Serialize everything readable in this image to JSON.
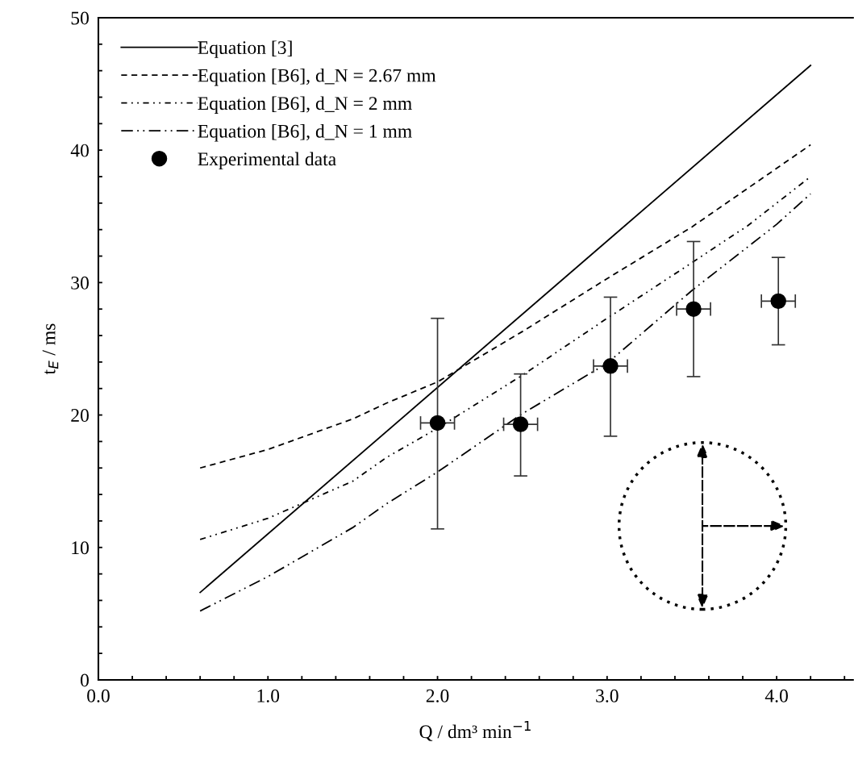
{
  "chart_data": {
    "type": "line",
    "xlabel": "Q / dm³ min$^{−1}$",
    "ylabel": "t$_{E}$ / ms",
    "xlim": [
      0,
      4.45
    ],
    "ylim": [
      0,
      50
    ],
    "xticks": [
      {
        "value": 0,
        "label": "0.0"
      },
      {
        "value": 0.2,
        "label": null
      },
      {
        "value": 0.4,
        "label": null
      },
      {
        "value": 0.6,
        "label": null
      },
      {
        "value": 0.8,
        "label": null
      },
      {
        "value": 1,
        "label": "1.0"
      },
      {
        "value": 1.2,
        "label": null
      },
      {
        "value": 1.4,
        "label": null
      },
      {
        "value": 1.6,
        "label": null
      },
      {
        "value": 1.8,
        "label": null
      },
      {
        "value": 2,
        "label": "2.0"
      },
      {
        "value": 2.2,
        "label": null
      },
      {
        "value": 2.4,
        "label": null
      },
      {
        "value": 2.6,
        "label": null
      },
      {
        "value": 2.8,
        "label": null
      },
      {
        "value": 3,
        "label": "3.0"
      },
      {
        "value": 3.2,
        "label": null
      },
      {
        "value": 3.4,
        "label": null
      },
      {
        "value": 3.6,
        "label": null
      },
      {
        "value": 3.8,
        "label": null
      },
      {
        "value": 4,
        "label": "4.0"
      },
      {
        "value": 4.2,
        "label": null
      },
      {
        "value": 4.4,
        "label": null
      }
    ],
    "yticks": [
      0,
      {
        "value": 2,
        "label": null
      },
      {
        "value": 4,
        "label": null
      },
      {
        "value": 6,
        "label": null
      },
      {
        "value": 8,
        "label": null
      },
      10,
      {
        "value": 12,
        "label": null
      },
      {
        "value": 14,
        "label": null
      },
      {
        "value": 16,
        "label": null
      },
      {
        "value": 18,
        "label": null
      },
      20,
      {
        "value": 22,
        "label": null
      },
      {
        "value": 24,
        "label": null
      },
      {
        "value": 26,
        "label": null
      },
      {
        "value": 28,
        "label": null
      },
      30,
      {
        "value": 32,
        "label": null
      },
      {
        "value": 34,
        "label": null
      },
      {
        "value": 36,
        "label": null
      },
      {
        "value": 38,
        "label": null
      },
      40,
      {
        "value": 42,
        "label": null
      },
      {
        "value": 44,
        "label": null
      },
      {
        "value": 46,
        "label": null
      },
      {
        "value": 48,
        "label": null
      },
      50
    ],
    "grid": false,
    "legend": "top left",
    "series": [
      {
        "name": "Equation [3]",
        "color": "#000000",
        "line_style": "solid",
        "x": [
          0.6,
          4.2
        ],
        "values": [
          6.6,
          46.4
        ]
      },
      {
        "name": "Equation [B6], d_N = 2.67 mm",
        "color": "#000000",
        "line_style": "dashed",
        "x": [
          0.6,
          1.0,
          1.5,
          1.7,
          2.0,
          2.5,
          3.0,
          3.5,
          4.2
        ],
        "values": [
          16.0,
          17.4,
          19.7,
          20.9,
          22.5,
          26.3,
          30.3,
          34.2,
          40.4
        ]
      },
      {
        "name": "Equation [B6], d_N = 2 mm",
        "color": "#000000",
        "line_style": "dashdotdot",
        "x": [
          0.6,
          1.0,
          1.5,
          1.7,
          2.0,
          2.5,
          3.0,
          3.5,
          3.83,
          4.2
        ],
        "values": [
          10.6,
          12.2,
          15.0,
          16.8,
          19.0,
          23.0,
          27.3,
          31.5,
          34.3,
          38.0
        ]
      },
      {
        "name": "Equation [B6], d_N = 1 mm",
        "color": "#000000",
        "line_style": "dashdot",
        "x": [
          0.6,
          1.0,
          1.5,
          1.7,
          2.0,
          2.5,
          3.0,
          3.5,
          4.0,
          4.2
        ],
        "values": [
          5.2,
          7.8,
          11.5,
          13.3,
          15.7,
          20.1,
          23.9,
          29.4,
          34.4,
          36.7
        ]
      },
      {
        "name": "Experimental data",
        "type": "scatter",
        "color": "#000000",
        "marker": "circle",
        "x": [
          2.0,
          2.49,
          3.02,
          3.51,
          4.01
        ],
        "values": [
          19.4,
          19.3,
          23.7,
          28.0,
          28.6
        ],
        "errors": [
          [
            11.4,
            27.3
          ],
          [
            15.4,
            23.1
          ],
          [
            18.4,
            28.9
          ],
          [
            22.9,
            33.1
          ],
          [
            25.3,
            31.9
          ]
        ],
        "xerrors": [
          0.1,
          0.1,
          0.1,
          0.1,
          0.1
        ]
      }
    ]
  }
}
